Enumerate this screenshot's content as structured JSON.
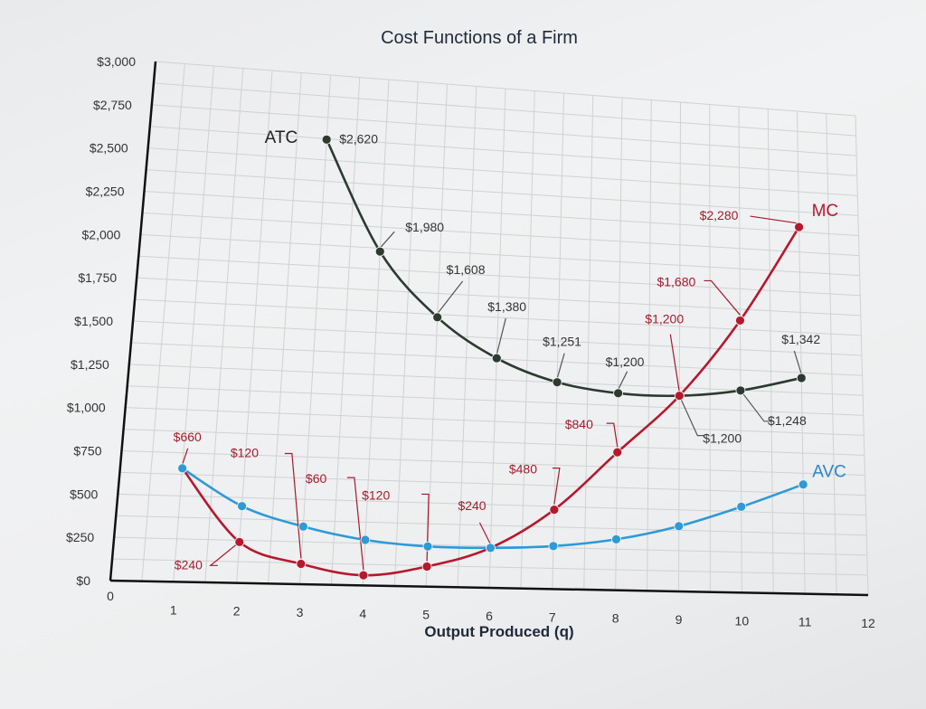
{
  "chart_data": {
    "type": "line",
    "title": "Cost Functions of a Firm",
    "xlabel": "Output Produced (q)",
    "ylabel": "",
    "xlim": [
      0,
      12
    ],
    "ylim": [
      0,
      3000
    ],
    "grid": true,
    "x_ticks": [
      "0",
      "1",
      "2",
      "3",
      "4",
      "5",
      "6",
      "7",
      "8",
      "9",
      "10",
      "11",
      "12"
    ],
    "y_ticks": [
      "$0",
      "$250",
      "$500",
      "$750",
      "$1,000",
      "$1,250",
      "$1,500",
      "$1,750",
      "$2,000",
      "$2,250",
      "$2,500",
      "$2,750",
      "$3,000"
    ],
    "series": [
      {
        "name": "ATC",
        "color": "#2c3a30",
        "points": [
          [
            3,
            2620
          ],
          [
            4,
            1980
          ],
          [
            5,
            1608
          ],
          [
            6,
            1380
          ],
          [
            7,
            1251
          ],
          [
            8,
            1200
          ],
          [
            9,
            1200
          ],
          [
            10,
            1248
          ],
          [
            11,
            1342
          ]
        ]
      },
      {
        "name": "MC",
        "color": "#b5192e",
        "points": [
          [
            1,
            660
          ],
          [
            2,
            240
          ],
          [
            3,
            120
          ],
          [
            4,
            60
          ],
          [
            5,
            120
          ],
          [
            6,
            240
          ],
          [
            7,
            480
          ],
          [
            8,
            840
          ],
          [
            9,
            1200
          ],
          [
            10,
            1680
          ],
          [
            11,
            2280
          ]
        ]
      },
      {
        "name": "AVC",
        "color": "#2e9ad6",
        "points": [
          [
            1,
            660
          ],
          [
            2,
            450
          ],
          [
            3,
            340
          ],
          [
            4,
            270
          ],
          [
            5,
            240
          ],
          [
            6,
            240
          ],
          [
            7,
            260
          ],
          [
            8,
            310
          ],
          [
            9,
            400
          ],
          [
            10,
            530
          ],
          [
            11,
            680
          ]
        ]
      }
    ],
    "annotations": [
      {
        "text": "$2,620",
        "series": "ATC",
        "x": 3
      },
      {
        "text": "$1,980",
        "series": "ATC",
        "x": 4
      },
      {
        "text": "$1,608",
        "series": "ATC",
        "x": 5
      },
      {
        "text": "$1,380",
        "series": "ATC",
        "x": 6
      },
      {
        "text": "$1,251",
        "series": "ATC",
        "x": 7
      },
      {
        "text": "$1,200",
        "series": "ATC",
        "x": 8
      },
      {
        "text": "$1,200",
        "series": "ATC",
        "x": 9
      },
      {
        "text": "$1,248",
        "series": "ATC",
        "x": 10
      },
      {
        "text": "$1,342",
        "series": "ATC",
        "x": 11
      },
      {
        "text": "$660",
        "series": "MC",
        "x": 1
      },
      {
        "text": "$240",
        "series": "MC",
        "x": 2
      },
      {
        "text": "$120",
        "series": "MC",
        "x": 3
      },
      {
        "text": "$60",
        "series": "MC",
        "x": 4
      },
      {
        "text": "$120",
        "series": "MC",
        "x": 5
      },
      {
        "text": "$240",
        "series": "MC",
        "x": 6
      },
      {
        "text": "$480",
        "series": "MC",
        "x": 7
      },
      {
        "text": "$840",
        "series": "MC",
        "x": 8
      },
      {
        "text": "$1,200",
        "series": "MC",
        "x": 9
      },
      {
        "text": "$1,680",
        "series": "MC",
        "x": 10
      },
      {
        "text": "$2,280",
        "series": "MC",
        "x": 11
      }
    ]
  }
}
